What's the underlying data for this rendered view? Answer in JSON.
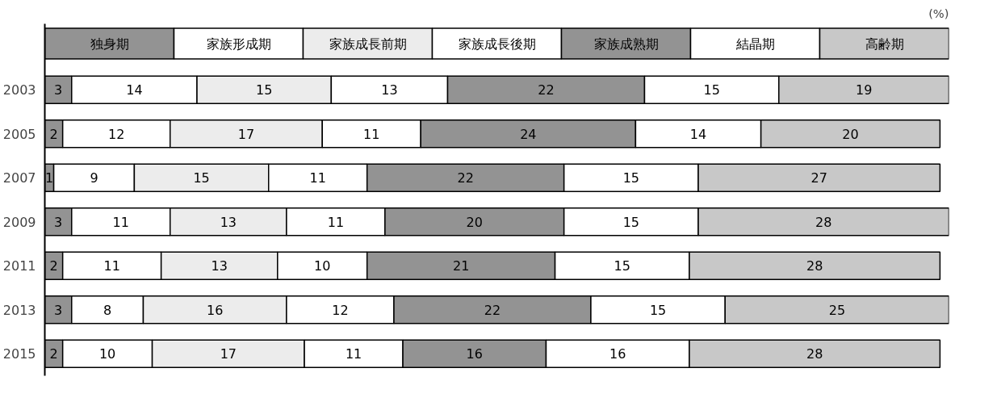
{
  "chart_data": {
    "type": "bar",
    "orientation": "horizontal",
    "stacked": true,
    "data_labels": true,
    "legend": "top",
    "tick_labels": "y",
    "grid": false,
    "xlim": [
      0,
      101
    ],
    "annotations": [
      "(%)"
    ],
    "categories": [
      "2003",
      "2005",
      "2007",
      "2009",
      "2011",
      "2013",
      "2015"
    ],
    "series": [
      {
        "name": "独身期",
        "color": "#939393",
        "values": [
          3,
          2,
          1,
          3,
          2,
          3,
          2
        ]
      },
      {
        "name": "家族形成期",
        "color": "#ffffff",
        "values": [
          14,
          12,
          9,
          11,
          11,
          8,
          10
        ]
      },
      {
        "name": "家族成長前期",
        "color": "#ececec",
        "values": [
          15,
          17,
          15,
          13,
          13,
          16,
          17
        ]
      },
      {
        "name": "家族成長後期",
        "color": "#ffffff",
        "values": [
          13,
          11,
          11,
          11,
          10,
          12,
          11
        ]
      },
      {
        "name": "家族成熟期",
        "color": "#939393",
        "values": [
          22,
          24,
          22,
          20,
          21,
          22,
          16
        ]
      },
      {
        "name": "結晶期",
        "color": "#ffffff",
        "values": [
          15,
          14,
          15,
          15,
          15,
          15,
          16
        ]
      },
      {
        "name": "高齢期",
        "color": "#c8c8c8",
        "values": [
          19,
          20,
          27,
          28,
          28,
          25,
          28
        ]
      }
    ]
  }
}
